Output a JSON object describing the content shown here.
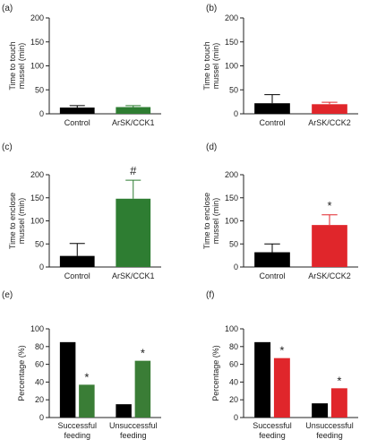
{
  "chart_data": [
    {
      "panel": "(a)",
      "type": "bar",
      "categories": [
        "Control",
        "ArSK/CCK1"
      ],
      "values": [
        13,
        14
      ],
      "errors": [
        4,
        3
      ],
      "colors": [
        "#000000",
        "#2e7d32"
      ],
      "markers": [
        "",
        ""
      ],
      "ylabel_lines": [
        "Time to touch",
        "mussel (min)"
      ],
      "ylim": [
        0,
        200
      ],
      "yticks": [
        0,
        50,
        100,
        150,
        200
      ]
    },
    {
      "panel": "(b)",
      "type": "bar",
      "categories": [
        "Control",
        "ArSK/CCK2"
      ],
      "values": [
        22,
        20
      ],
      "errors": [
        18,
        4
      ],
      "colors": [
        "#000000",
        "#e0262b"
      ],
      "markers": [
        "",
        ""
      ],
      "ylabel_lines": [
        "Time to touch",
        "mussel (min)"
      ],
      "ylim": [
        0,
        200
      ],
      "yticks": [
        0,
        50,
        100,
        150,
        200
      ]
    },
    {
      "panel": "(c)",
      "type": "bar",
      "categories": [
        "Control",
        "ArSK/CCK1"
      ],
      "values": [
        24,
        148
      ],
      "errors": [
        27,
        40
      ],
      "colors": [
        "#000000",
        "#2e7d32"
      ],
      "markers": [
        "",
        "#"
      ],
      "ylabel_lines": [
        "Time to enclose",
        "mussel (min)"
      ],
      "ylim": [
        0,
        200
      ],
      "yticks": [
        0,
        50,
        100,
        150,
        200
      ]
    },
    {
      "panel": "(d)",
      "type": "bar",
      "categories": [
        "Control",
        "ArSK/CCK2"
      ],
      "values": [
        32,
        91
      ],
      "errors": [
        18,
        22
      ],
      "colors": [
        "#000000",
        "#e0262b"
      ],
      "markers": [
        "",
        "*"
      ],
      "ylabel_lines": [
        "Time to enclose",
        "mussel (min)"
      ],
      "ylim": [
        0,
        200
      ],
      "yticks": [
        0,
        50,
        100,
        150,
        200
      ]
    },
    {
      "panel": "(e)",
      "type": "bar",
      "groups": [
        [
          "Successful",
          "feeding"
        ],
        [
          "Unsuccessful",
          "feeding"
        ]
      ],
      "series": [
        {
          "values": [
            85,
            15
          ],
          "color": "#000000",
          "markers": [
            "",
            ""
          ]
        },
        {
          "values": [
            37,
            64
          ],
          "color": "#3a7d36",
          "markers": [
            "*",
            "*"
          ]
        }
      ],
      "ylabel_lines": [
        "Percentage (%)"
      ],
      "ylim": [
        0,
        100
      ],
      "yticks": [
        0,
        20,
        40,
        60,
        80,
        100
      ]
    },
    {
      "panel": "(f)",
      "type": "bar",
      "groups": [
        [
          "Successful",
          "feeding"
        ],
        [
          "Unsuccessful",
          "feeding"
        ]
      ],
      "series": [
        {
          "values": [
            85,
            16
          ],
          "color": "#000000",
          "markers": [
            "",
            ""
          ]
        },
        {
          "values": [
            67,
            33
          ],
          "color": "#e0262b",
          "markers": [
            "*",
            "*"
          ]
        }
      ],
      "ylabel_lines": [
        "Percentage (%)"
      ],
      "ylim": [
        0,
        100
      ],
      "yticks": [
        0,
        20,
        40,
        60,
        80,
        100
      ]
    }
  ]
}
